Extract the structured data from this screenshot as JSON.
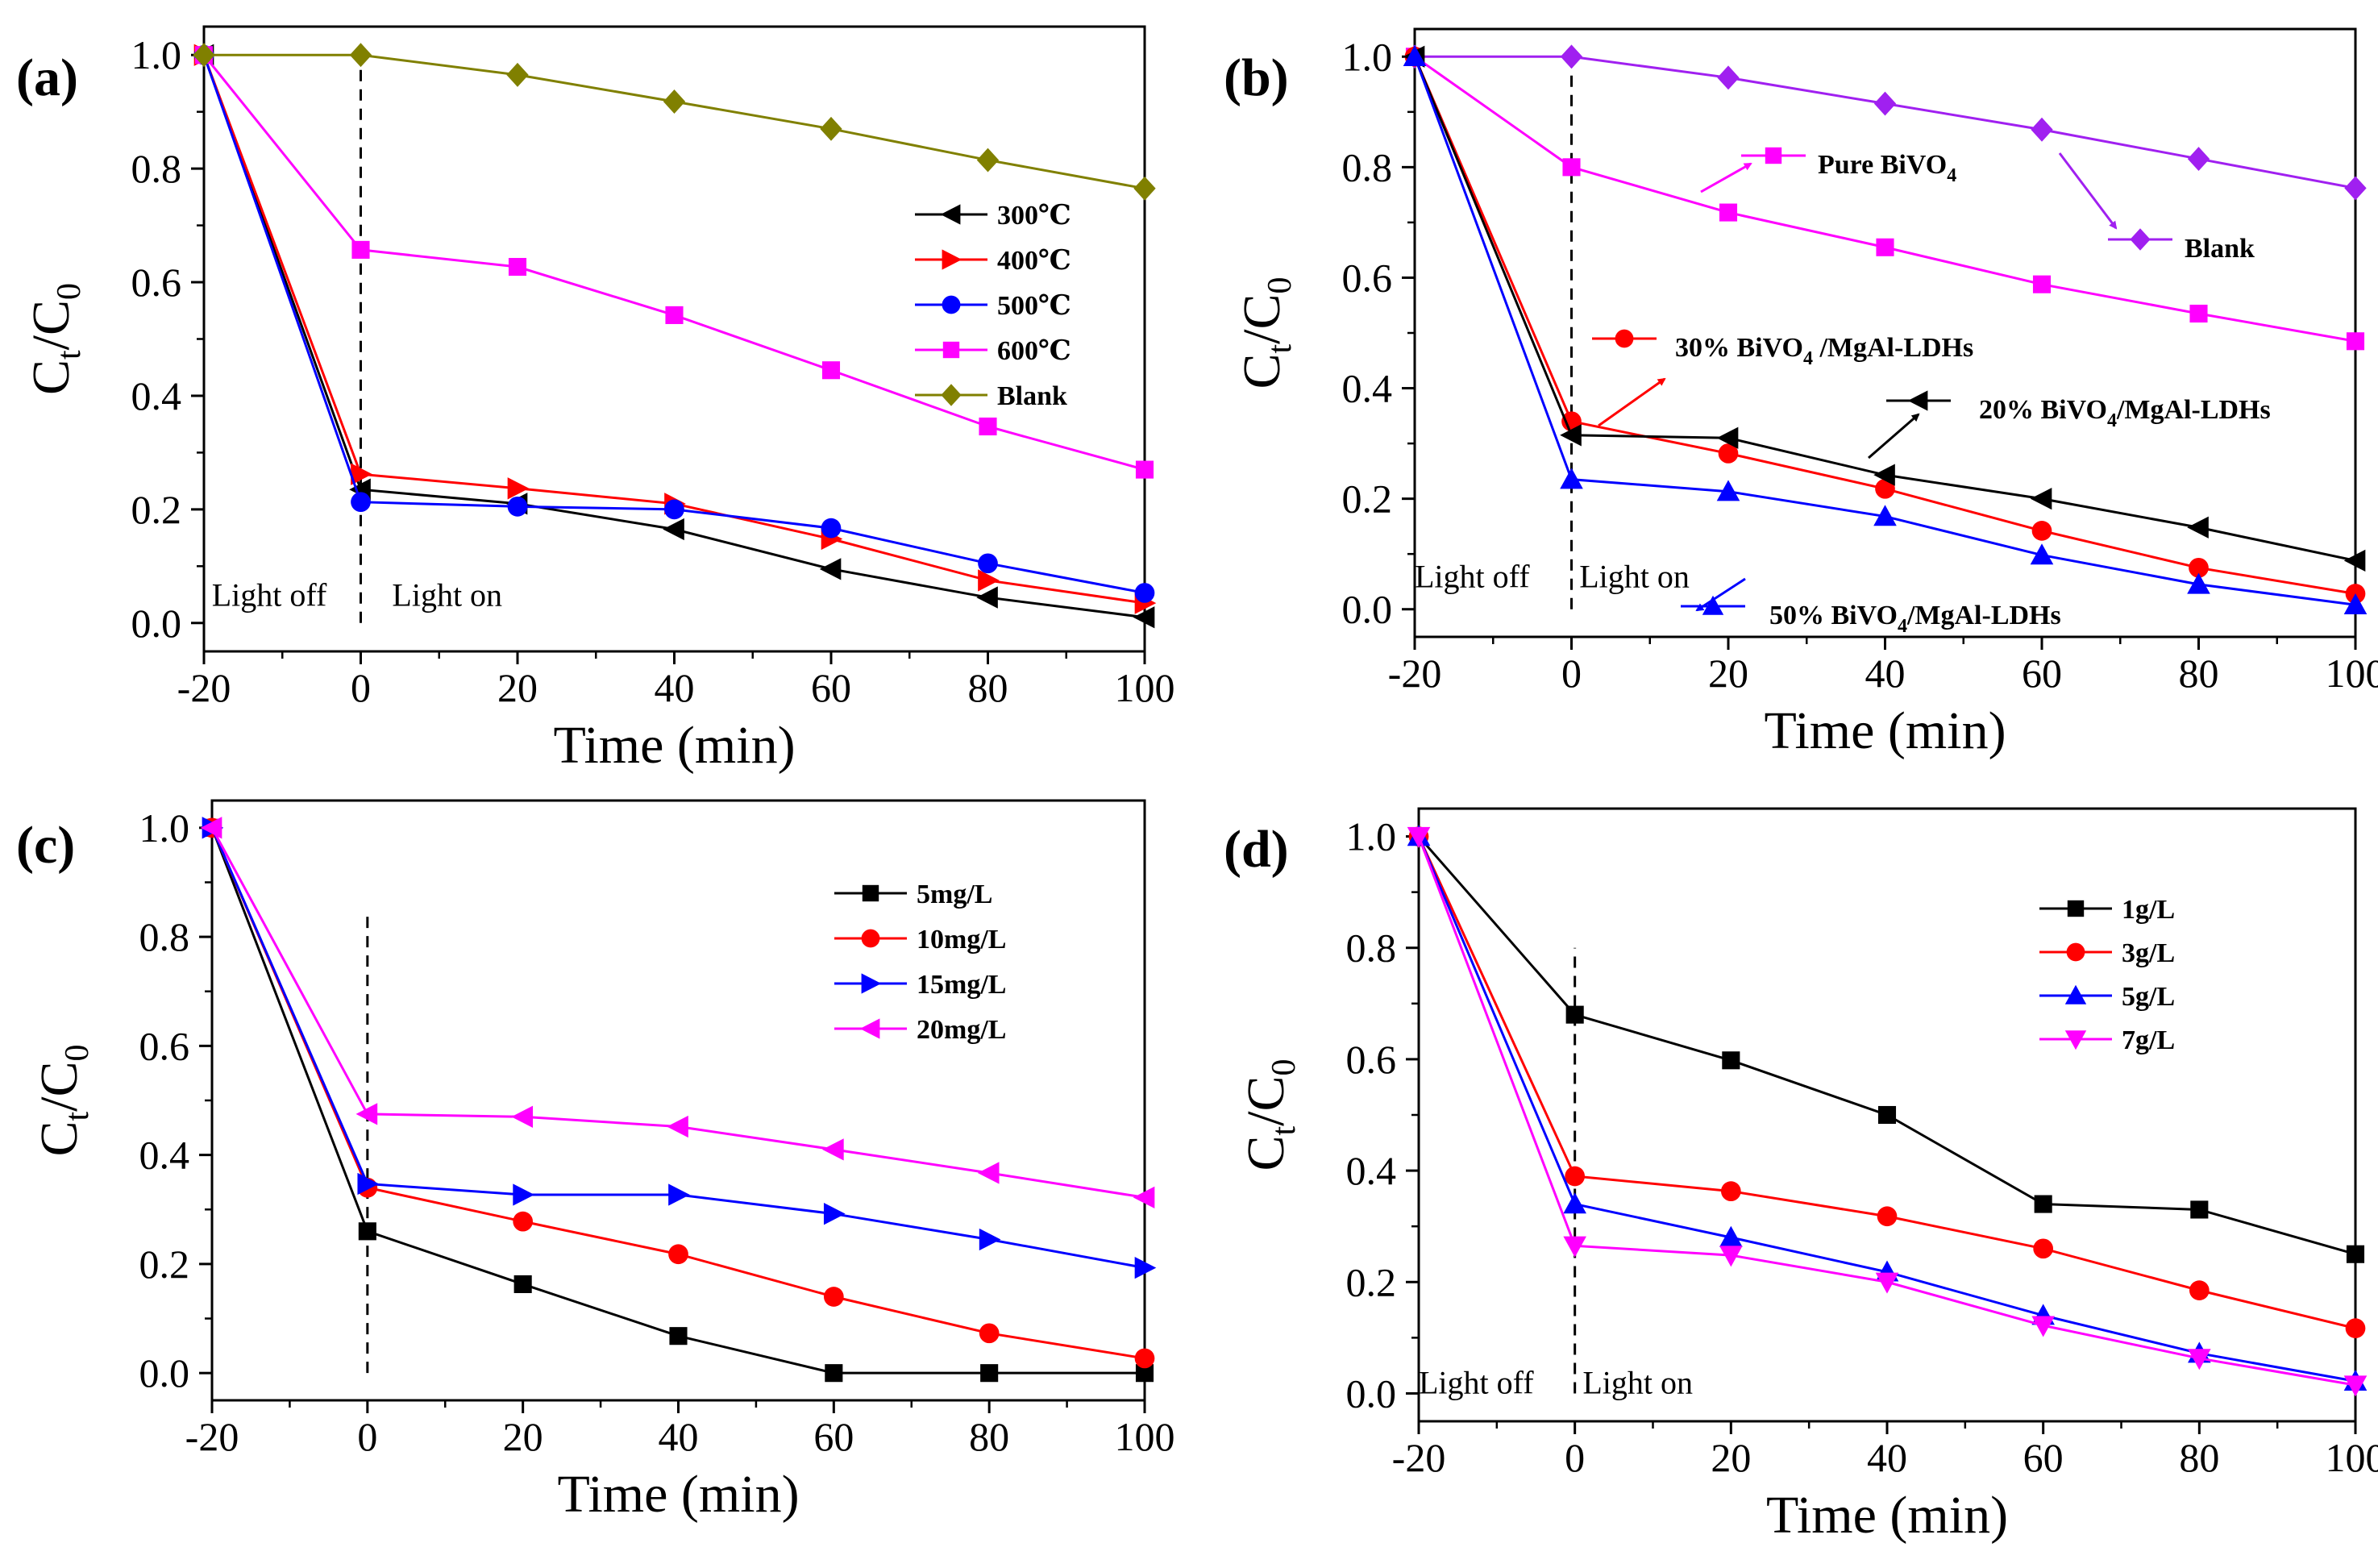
{
  "chart_data": [
    {
      "type": "line",
      "panel_label": "(a)",
      "xlabel": "Time (min)",
      "ylabel_main": "C",
      "ylabel_sub1": "t",
      "ylabel_mid": "/C",
      "ylabel_sub2": "0",
      "xlim": [
        -20,
        100
      ],
      "ylim": [
        -0.05,
        1.05
      ],
      "xticks": [
        -20,
        0,
        20,
        40,
        60,
        80,
        100
      ],
      "xtick_labels": [
        "-20",
        "0",
        "20",
        "40",
        "60",
        "80",
        "100"
      ],
      "yticks": [
        0.0,
        0.2,
        0.4,
        0.6,
        0.8,
        1.0
      ],
      "ytick_labels": [
        "0.0",
        "0.2",
        "0.4",
        "0.6",
        "0.8",
        "1.0"
      ],
      "x": [
        -20,
        0,
        20,
        40,
        60,
        80,
        100
      ],
      "legend_position": "right",
      "series": [
        {
          "name": "300℃",
          "marker": "triangle-left",
          "color": "#000000",
          "values": [
            1.0,
            0.235,
            0.21,
            0.165,
            0.095,
            0.045,
            0.01
          ]
        },
        {
          "name": "400℃",
          "marker": "triangle-right",
          "color": "#ff0000",
          "values": [
            1.0,
            0.262,
            0.237,
            0.21,
            0.148,
            0.075,
            0.035
          ]
        },
        {
          "name": "500℃",
          "marker": "circle",
          "color": "#0000ff",
          "values": [
            1.0,
            0.213,
            0.205,
            0.2,
            0.167,
            0.105,
            0.053
          ]
        },
        {
          "name": "600℃",
          "marker": "square",
          "color": "#ff00ff",
          "values": [
            1.0,
            0.657,
            0.627,
            0.542,
            0.445,
            0.346,
            0.27
          ]
        },
        {
          "name": "Blank",
          "marker": "diamond",
          "color": "#808000",
          "values": [
            1.0,
            1.0,
            0.965,
            0.918,
            0.87,
            0.815,
            0.765
          ]
        }
      ],
      "annotations": {
        "light_off": "Light off",
        "light_on": "Light on"
      }
    },
    {
      "type": "line",
      "panel_label": "(b)",
      "xlabel": "Time (min)",
      "ylabel_main": "C",
      "ylabel_sub1": "t",
      "ylabel_mid": "/C",
      "ylabel_sub2": "0",
      "xlim": [
        -20,
        100
      ],
      "ylim": [
        -0.05,
        1.05
      ],
      "xticks": [
        -20,
        0,
        20,
        40,
        60,
        80,
        100
      ],
      "xtick_labels": [
        "-20",
        "0",
        "20",
        "40",
        "60",
        "80",
        "100"
      ],
      "yticks": [
        0.0,
        0.2,
        0.4,
        0.6,
        0.8,
        1.0
      ],
      "ytick_labels": [
        "0.0",
        "0.2",
        "0.4",
        "0.6",
        "0.8",
        "1.0"
      ],
      "x": [
        -20,
        0,
        20,
        40,
        60,
        80,
        100
      ],
      "legend_position": "callouts",
      "series": [
        {
          "name": "Pure BiVO4",
          "marker": "square",
          "color": "#ff00ff",
          "values": [
            1.0,
            0.8,
            0.718,
            0.655,
            0.588,
            0.535,
            0.485
          ]
        },
        {
          "name": "Blank",
          "marker": "diamond",
          "color": "#a020f0",
          "values": [
            1.0,
            1.0,
            0.962,
            0.915,
            0.868,
            0.815,
            0.762
          ]
        },
        {
          "name": "30% BiVO4 /MgAl-LDHs",
          "marker": "circle",
          "color": "#ff0000",
          "values": [
            1.0,
            0.34,
            0.282,
            0.218,
            0.142,
            0.075,
            0.028
          ]
        },
        {
          "name": "20% BiVO4/MgAl-LDHs",
          "marker": "triangle-left",
          "color": "#000000",
          "values": [
            1.0,
            0.315,
            0.31,
            0.243,
            0.2,
            0.148,
            0.088
          ]
        },
        {
          "name": "50% BiVO4/MgAl-LDHs",
          "marker": "triangle-up",
          "color": "#0000ff",
          "values": [
            1.0,
            0.235,
            0.213,
            0.168,
            0.098,
            0.045,
            0.008
          ]
        }
      ],
      "callouts": [
        {
          "base": "Pure BiVO",
          "sub": "4",
          "rest": ""
        },
        {
          "base": "Blank",
          "sub": "",
          "rest": ""
        },
        {
          "base": "30% BiVO",
          "sub": "4",
          "rest": " /MgAl-LDHs"
        },
        {
          "base": "20% BiVO",
          "sub": "4",
          "rest": "/MgAl-LDHs"
        },
        {
          "base": "50% BiVO",
          "sub": "4",
          "rest": "/MgAl-LDHs"
        }
      ],
      "annotations": {
        "light_off": "Light off",
        "light_on": "Light on"
      }
    },
    {
      "type": "line",
      "panel_label": "(c)",
      "xlabel": "Time (min)",
      "ylabel_main": "C",
      "ylabel_sub1": "t",
      "ylabel_mid": "/C",
      "ylabel_sub2": "0",
      "xlim": [
        -20,
        100
      ],
      "ylim": [
        -0.05,
        1.05
      ],
      "xticks": [
        -20,
        0,
        20,
        40,
        60,
        80,
        100
      ],
      "xtick_labels": [
        "-20",
        "0",
        "20",
        "40",
        "60",
        "80",
        "100"
      ],
      "yticks": [
        0.0,
        0.2,
        0.4,
        0.6,
        0.8,
        1.0
      ],
      "ytick_labels": [
        "0.0",
        "0.2",
        "0.4",
        "0.6",
        "0.8",
        "1.0"
      ],
      "x": [
        -20,
        0,
        20,
        40,
        60,
        80,
        100
      ],
      "legend_position": "right",
      "series": [
        {
          "name": "5mg/L",
          "marker": "square",
          "color": "#000000",
          "values": [
            1.0,
            0.26,
            0.163,
            0.068,
            0.0,
            0.0,
            0.0
          ]
        },
        {
          "name": "10mg/L",
          "marker": "circle",
          "color": "#ff0000",
          "values": [
            1.0,
            0.34,
            0.278,
            0.218,
            0.14,
            0.073,
            0.027
          ]
        },
        {
          "name": "15mg/L",
          "marker": "triangle-right",
          "color": "#0000ff",
          "values": [
            1.0,
            0.347,
            0.327,
            0.327,
            0.292,
            0.245,
            0.193
          ]
        },
        {
          "name": "20mg/L",
          "marker": "triangle-left",
          "color": "#ff00ff",
          "values": [
            1.0,
            0.475,
            0.47,
            0.452,
            0.41,
            0.367,
            0.322
          ]
        }
      ]
    },
    {
      "type": "line",
      "panel_label": "(d)",
      "xlabel": "Time (min)",
      "ylabel_main": "C",
      "ylabel_sub1": "t",
      "ylabel_mid": "/C",
      "ylabel_sub2": "0",
      "xlim": [
        -20,
        100
      ],
      "ylim": [
        -0.05,
        1.05
      ],
      "xticks": [
        -20,
        0,
        20,
        40,
        60,
        80,
        100
      ],
      "xtick_labels": [
        "-20",
        "0",
        "20",
        "40",
        "60",
        "80",
        "100"
      ],
      "yticks": [
        0.0,
        0.2,
        0.4,
        0.6,
        0.8,
        1.0
      ],
      "ytick_labels": [
        "0.0",
        "0.2",
        "0.4",
        "0.6",
        "0.8",
        "1.0"
      ],
      "x": [
        -20,
        0,
        20,
        40,
        60,
        80,
        100
      ],
      "legend_position": "right",
      "series": [
        {
          "name": "1g/L",
          "marker": "square",
          "color": "#000000",
          "values": [
            1.0,
            0.68,
            0.598,
            0.5,
            0.34,
            0.33,
            0.25
          ]
        },
        {
          "name": "3g/L",
          "marker": "circle",
          "color": "#ff0000",
          "values": [
            1.0,
            0.39,
            0.363,
            0.318,
            0.26,
            0.185,
            0.117
          ]
        },
        {
          "name": "5g/L",
          "marker": "triangle-up",
          "color": "#0000ff",
          "values": [
            1.0,
            0.34,
            0.28,
            0.218,
            0.14,
            0.072,
            0.022
          ]
        },
        {
          "name": "7g/L",
          "marker": "triangle-down",
          "color": "#ff00ff",
          "values": [
            1.0,
            0.265,
            0.248,
            0.2,
            0.122,
            0.063,
            0.015
          ]
        }
      ],
      "annotations": {
        "light_off": "Light off",
        "light_on": "Light on"
      }
    }
  ]
}
